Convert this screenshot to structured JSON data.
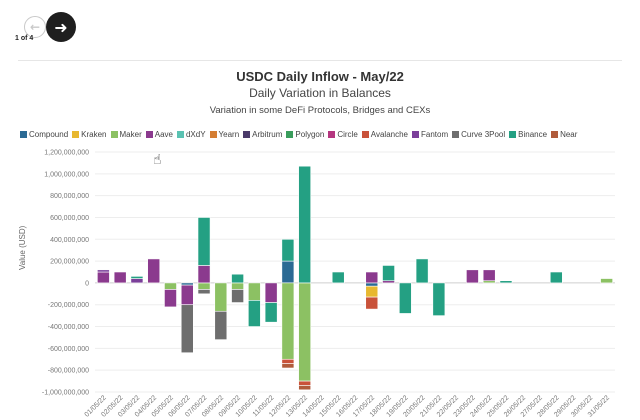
{
  "nav": {
    "prev_glyph": "←",
    "next_glyph": "➜",
    "pager": "1 of 4"
  },
  "chart_data": {
    "type": "bar",
    "stacked": true,
    "title": "USDC Daily Inflow - May/22",
    "subtitle": "Daily Variation in Balances",
    "caption": "Variation in some DeFi Protocols, Bridges and CEXs",
    "ylabel": "Value (USD)",
    "ylim": [
      -1000000000,
      1200000000
    ],
    "yticks": [
      -1000000000,
      -800000000,
      -600000000,
      -400000000,
      -200000000,
      0,
      200000000,
      400000000,
      600000000,
      800000000,
      1000000000,
      1200000000
    ],
    "ytick_labels": [
      "-1,000,000,000",
      "-800,000,000",
      "-600,000,000",
      "-400,000,000",
      "-200,000,000",
      "0",
      "200,000,000",
      "400,000,000",
      "600,000,000",
      "800,000,000",
      "1,000,000,000",
      "1,200,000,000"
    ],
    "grid": true,
    "legend_position": "top",
    "categories": [
      "01/05/22",
      "02/05/22",
      "03/05/22",
      "04/05/22",
      "05/05/22",
      "06/05/22",
      "07/05/22",
      "08/05/22",
      "09/05/22",
      "10/05/22",
      "11/05/22",
      "12/05/22",
      "13/05/22",
      "14/05/22",
      "15/05/22",
      "16/05/22",
      "17/05/22",
      "18/05/22",
      "19/05/22",
      "20/05/22",
      "21/05/22",
      "22/05/22",
      "23/05/22",
      "24/05/22",
      "25/05/22",
      "26/05/22",
      "27/05/22",
      "28/05/22",
      "29/05/22",
      "30/05/22",
      "31/05/22"
    ],
    "series": [
      {
        "name": "Compound",
        "color": "#2b6a94",
        "values": [
          0,
          0,
          0,
          0,
          0,
          -20000000,
          0,
          0,
          0,
          0,
          0,
          200000000,
          0,
          0,
          0,
          0,
          -30000000,
          0,
          0,
          0,
          0,
          0,
          0,
          0,
          0,
          0,
          0,
          0,
          0,
          0,
          0
        ]
      },
      {
        "name": "Kraken",
        "color": "#e8b830",
        "values": [
          0,
          0,
          0,
          0,
          0,
          0,
          0,
          0,
          0,
          0,
          0,
          0,
          0,
          0,
          0,
          0,
          -100000000,
          0,
          0,
          0,
          0,
          0,
          0,
          0,
          0,
          0,
          0,
          0,
          0,
          0,
          0
        ]
      },
      {
        "name": "Maker",
        "color": "#8cc163",
        "values": [
          0,
          0,
          0,
          0,
          -60000000,
          0,
          -60000000,
          -260000000,
          -60000000,
          -160000000,
          0,
          -700000000,
          -900000000,
          0,
          0,
          0,
          0,
          0,
          0,
          0,
          0,
          0,
          0,
          20000000,
          0,
          0,
          0,
          0,
          0,
          0,
          40000000
        ]
      },
      {
        "name": "Aave",
        "color": "#8b3a8e",
        "values": [
          100000000,
          100000000,
          0,
          220000000,
          -160000000,
          -180000000,
          160000000,
          0,
          0,
          0,
          -180000000,
          0,
          0,
          0,
          0,
          0,
          100000000,
          20000000,
          0,
          0,
          0,
          0,
          120000000,
          100000000,
          0,
          0,
          0,
          0,
          0,
          0,
          0
        ]
      },
      {
        "name": "dXdY",
        "color": "#5ac2b2",
        "values": [
          0,
          0,
          0,
          0,
          0,
          0,
          0,
          0,
          0,
          0,
          0,
          0,
          0,
          0,
          0,
          0,
          0,
          0,
          0,
          0,
          0,
          0,
          0,
          0,
          0,
          0,
          0,
          0,
          0,
          0,
          0
        ]
      },
      {
        "name": "Yearn",
        "color": "#d47d33",
        "values": [
          0,
          0,
          0,
          0,
          0,
          0,
          0,
          0,
          0,
          0,
          0,
          0,
          0,
          0,
          0,
          0,
          0,
          0,
          0,
          0,
          0,
          0,
          0,
          0,
          0,
          0,
          0,
          0,
          0,
          0,
          0
        ]
      },
      {
        "name": "Arbitrum",
        "color": "#4b3a6a",
        "values": [
          0,
          0,
          0,
          0,
          0,
          0,
          0,
          0,
          0,
          0,
          0,
          0,
          0,
          0,
          0,
          0,
          0,
          0,
          0,
          0,
          0,
          0,
          0,
          0,
          0,
          0,
          0,
          0,
          0,
          0,
          0
        ]
      },
      {
        "name": "Polygon",
        "color": "#3a9d5c",
        "values": [
          0,
          0,
          0,
          0,
          0,
          0,
          0,
          0,
          0,
          0,
          0,
          0,
          0,
          0,
          0,
          0,
          0,
          0,
          0,
          0,
          0,
          0,
          0,
          0,
          0,
          0,
          0,
          0,
          0,
          0,
          0
        ]
      },
      {
        "name": "Circle",
        "color": "#b4367f",
        "values": [
          0,
          0,
          0,
          0,
          0,
          0,
          0,
          0,
          0,
          0,
          0,
          0,
          0,
          0,
          0,
          0,
          0,
          0,
          0,
          0,
          0,
          0,
          0,
          0,
          0,
          0,
          0,
          0,
          0,
          0,
          0
        ]
      },
      {
        "name": "Avalanche",
        "color": "#c9523a",
        "values": [
          0,
          0,
          0,
          0,
          0,
          0,
          0,
          0,
          0,
          0,
          0,
          -40000000,
          -40000000,
          0,
          0,
          0,
          -110000000,
          0,
          0,
          0,
          0,
          0,
          0,
          0,
          0,
          0,
          0,
          0,
          0,
          0,
          0
        ]
      },
      {
        "name": "Fantom",
        "color": "#7b3f9a",
        "values": [
          20000000,
          0,
          40000000,
          0,
          0,
          0,
          0,
          0,
          0,
          0,
          0,
          0,
          0,
          0,
          0,
          0,
          0,
          0,
          0,
          0,
          0,
          0,
          0,
          0,
          0,
          0,
          0,
          0,
          0,
          0,
          0
        ]
      },
      {
        "name": "Curve 3Pool",
        "color": "#6e6e6e",
        "values": [
          0,
          0,
          0,
          0,
          0,
          -440000000,
          -40000000,
          -260000000,
          -120000000,
          0,
          0,
          0,
          0,
          0,
          0,
          0,
          0,
          0,
          0,
          0,
          0,
          0,
          0,
          0,
          0,
          0,
          0,
          0,
          0,
          0,
          0
        ]
      },
      {
        "name": "Binance",
        "color": "#24a083",
        "values": [
          0,
          0,
          20000000,
          0,
          0,
          0,
          440000000,
          0,
          80000000,
          -240000000,
          -180000000,
          200000000,
          1070000000,
          0,
          100000000,
          0,
          0,
          140000000,
          -280000000,
          220000000,
          -300000000,
          0,
          0,
          0,
          20000000,
          0,
          0,
          100000000,
          0,
          0,
          0
        ]
      },
      {
        "name": "Near",
        "color": "#b05b3b",
        "values": [
          0,
          0,
          0,
          0,
          0,
          0,
          0,
          0,
          0,
          0,
          0,
          -40000000,
          -40000000,
          0,
          0,
          0,
          0,
          0,
          0,
          0,
          0,
          0,
          0,
          0,
          0,
          0,
          0,
          0,
          0,
          0,
          0
        ]
      }
    ]
  }
}
